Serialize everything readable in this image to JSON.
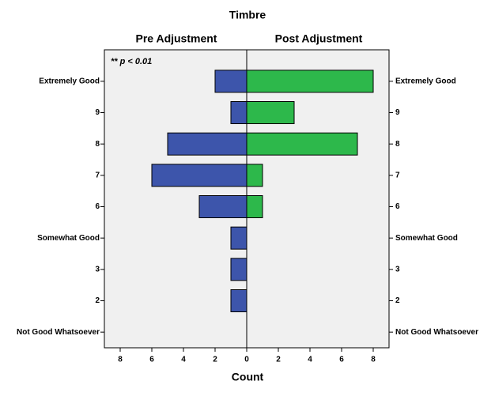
{
  "chart_data": {
    "type": "pyramid",
    "title": "Timbre",
    "x_label": "Count",
    "annotation": "** p < 0.01",
    "categories": [
      "Extremely Good",
      "9",
      "8",
      "7",
      "6",
      "Somewhat Good",
      "3",
      "2",
      "Not Good Whatsoever"
    ],
    "series": [
      {
        "name": "Pre Adjustment",
        "color": "#3d55ab",
        "values": [
          2,
          1,
          5,
          6,
          3,
          1,
          1,
          1,
          0
        ]
      },
      {
        "name": "Post Adjustment",
        "color": "#2db84b",
        "values": [
          8,
          3,
          7,
          1,
          1,
          0,
          0,
          0,
          0
        ]
      }
    ],
    "xlim": [
      0,
      9
    ],
    "xticks": [
      0,
      2,
      4,
      6,
      8
    ]
  }
}
